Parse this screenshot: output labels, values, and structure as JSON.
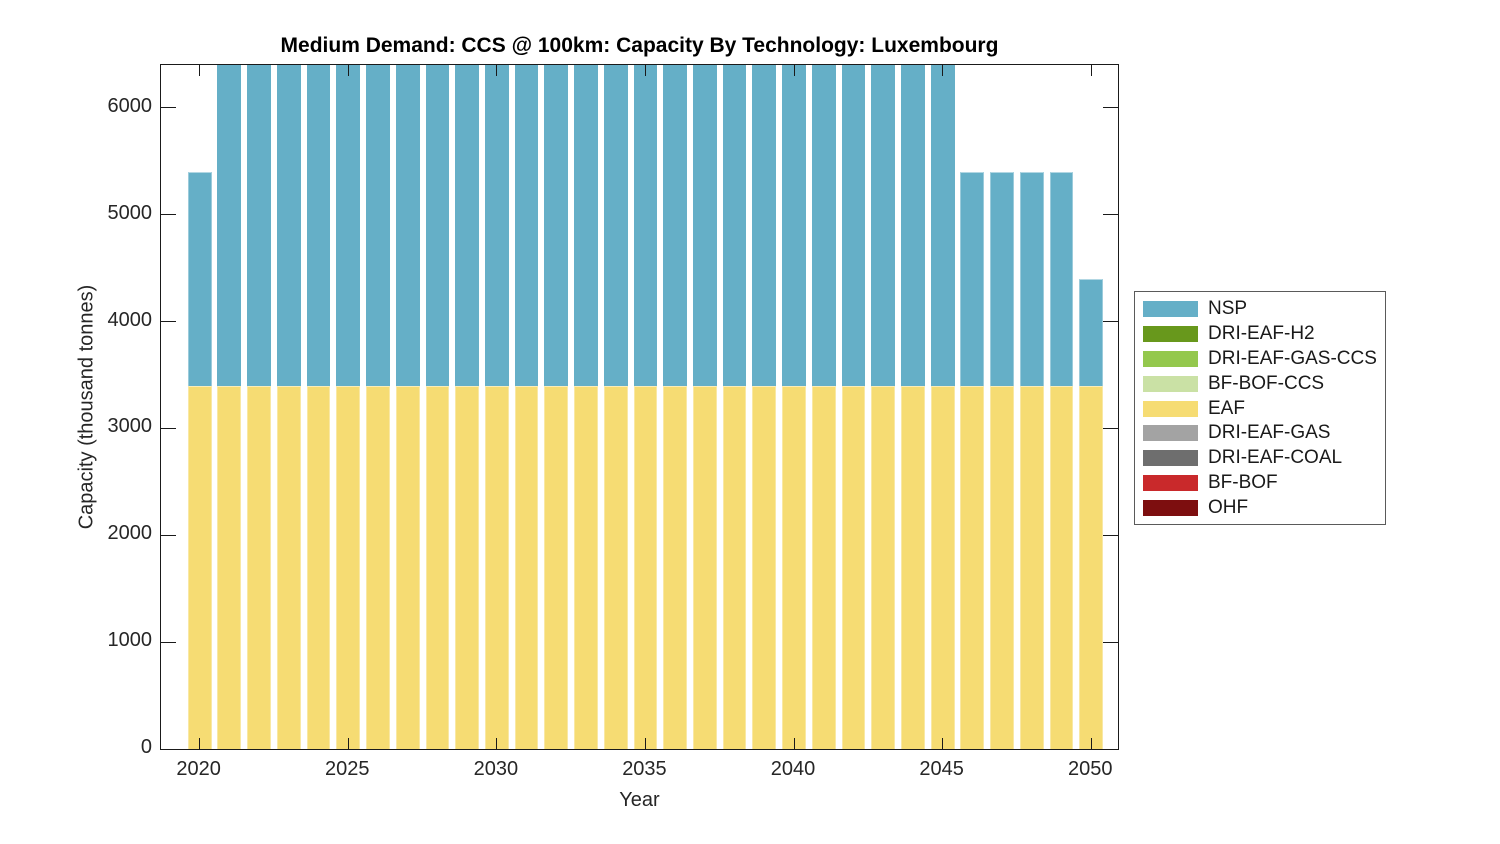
{
  "chart_data": {
    "type": "bar",
    "stacked": true,
    "title": "Medium Demand: CCS @ 100km: Capacity By Technology: Luxembourg",
    "xlabel": "Year",
    "ylabel": "Capacity (thousand tonnes)",
    "x": [
      2020,
      2021,
      2022,
      2023,
      2024,
      2025,
      2026,
      2027,
      2028,
      2029,
      2030,
      2031,
      2032,
      2033,
      2034,
      2035,
      2036,
      2037,
      2038,
      2039,
      2040,
      2041,
      2042,
      2043,
      2044,
      2045,
      2046,
      2047,
      2048,
      2049,
      2050
    ],
    "series": [
      {
        "name": "NSP",
        "color": "#65AFC7",
        "values": [
          2000,
          3000,
          3000,
          3000,
          3000,
          3000,
          3000,
          3000,
          3000,
          3000,
          3000,
          3000,
          3000,
          3000,
          3000,
          3000,
          3000,
          3000,
          3000,
          3000,
          3000,
          3000,
          3000,
          3000,
          3000,
          3000,
          2000,
          2000,
          2000,
          2000,
          1000
        ]
      },
      {
        "name": "DRI-EAF-H2",
        "color": "#68981C"
      },
      {
        "name": "DRI-EAF-GAS-CCS",
        "color": "#94C84D"
      },
      {
        "name": "BF-BOF-CCS",
        "color": "#CAE1A5"
      },
      {
        "name": "EAF",
        "color": "#F6DC73",
        "values": [
          3400,
          3400,
          3400,
          3400,
          3400,
          3400,
          3400,
          3400,
          3400,
          3400,
          3400,
          3400,
          3400,
          3400,
          3400,
          3400,
          3400,
          3400,
          3400,
          3400,
          3400,
          3400,
          3400,
          3400,
          3400,
          3400,
          3400,
          3400,
          3400,
          3400,
          3400
        ]
      },
      {
        "name": "DRI-EAF-GAS",
        "color": "#A3A3A3"
      },
      {
        "name": "DRI-EAF-COAL",
        "color": "#6E6E6E"
      },
      {
        "name": "BF-BOF",
        "color": "#C9292B"
      },
      {
        "name": "OHF",
        "color": "#7D0E0F"
      }
    ],
    "xlim": [
      2018.7,
      2050.9
    ],
    "ylim": [
      0,
      6400
    ],
    "xticks": [
      2020,
      2025,
      2030,
      2035,
      2040,
      2045,
      2050
    ],
    "yticks": [
      0,
      1000,
      2000,
      3000,
      4000,
      5000,
      6000
    ],
    "bar_width": 0.8,
    "grid": false,
    "legend_position": "right-outside"
  }
}
